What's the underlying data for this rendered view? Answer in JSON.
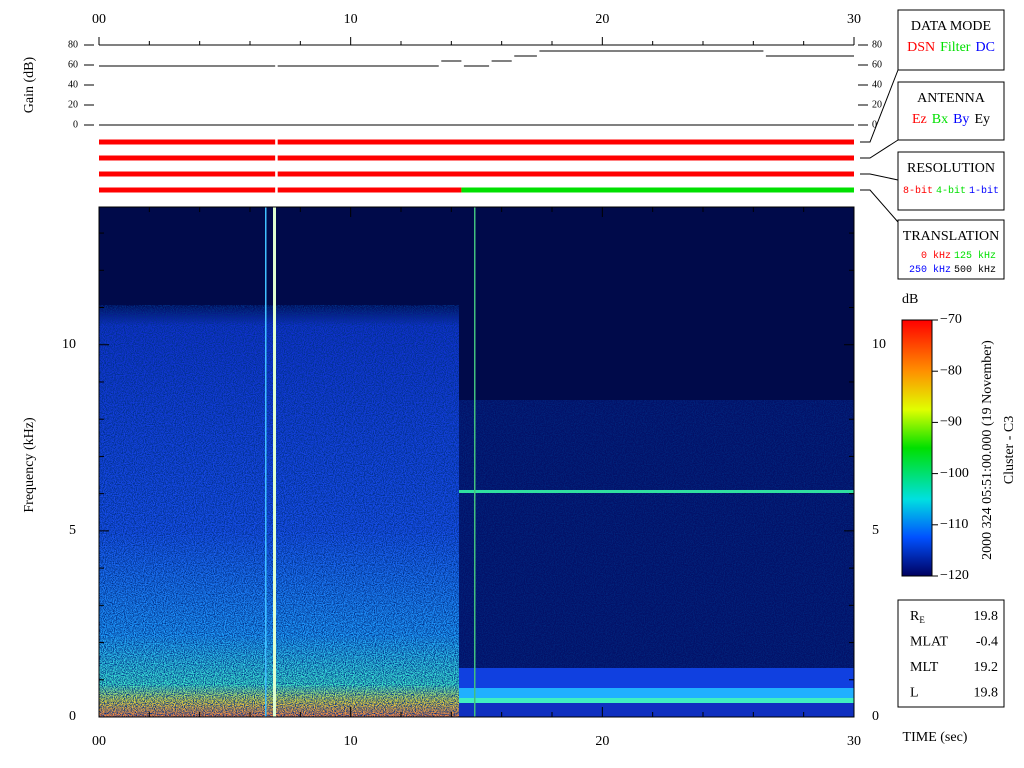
{
  "chart_data": [
    {
      "type": "line",
      "ylabel": "Gain (dB)",
      "xlim": [
        0,
        30
      ],
      "ylim": [
        0,
        80
      ],
      "xticks": [
        {
          "value": 0,
          "label": "00"
        },
        10,
        20,
        30
      ],
      "xminorticks": [
        2,
        4,
        6,
        8,
        12,
        14,
        16,
        18,
        22,
        24,
        26,
        28
      ],
      "yticks": [
        0,
        20,
        40,
        60,
        80
      ],
      "series": [
        {
          "color": "#000000",
          "x": [
            0,
            7.0,
            7.0,
            7.1,
            13.5,
            13.5,
            13.6,
            14.4,
            14.4,
            14.5,
            15.5,
            15.5,
            15.6,
            16.4,
            16.4,
            16.5,
            17.4,
            17.4,
            17.5,
            26.4,
            26.4,
            26.5,
            30
          ],
          "values": [
            59,
            59,
            null,
            59,
            59,
            null,
            64,
            64,
            null,
            59,
            59,
            null,
            64,
            64,
            null,
            69,
            69,
            null,
            74,
            74,
            null,
            69,
            69
          ]
        }
      ]
    },
    {
      "type": "timeline",
      "xlim": [
        0,
        30
      ],
      "rows": [
        {
          "title": "DATA MODE",
          "lines": [
            [
              {
                "name": "DSN",
                "color": "#ff0000"
              },
              {
                "name": "Filter",
                "color": "#00e000"
              },
              {
                "name": "DC",
                "color": "#0000ff"
              }
            ]
          ],
          "segments": [
            {
              "start": 0,
              "end": 7.0,
              "color": "#ff0000"
            },
            {
              "start": 7.1,
              "end": 30,
              "color": "#ff0000"
            }
          ]
        },
        {
          "title": "ANTENNA",
          "lines": [
            [
              {
                "name": "Ez",
                "color": "#ff0000"
              },
              {
                "name": "Bx",
                "color": "#00e000"
              },
              {
                "name": "By",
                "color": "#0000ff"
              },
              {
                "name": "Ey",
                "color": "#000000"
              }
            ]
          ],
          "segments": [
            {
              "start": 0,
              "end": 7.0,
              "color": "#ff0000"
            },
            {
              "start": 7.1,
              "end": 30,
              "color": "#ff0000"
            }
          ]
        },
        {
          "title": "RESOLUTION",
          "lines": [
            [
              {
                "name": "8-bit",
                "color": "#ff0000"
              },
              {
                "name": "4-bit",
                "color": "#00e000"
              },
              {
                "name": "1-bit",
                "color": "#0000ff"
              }
            ]
          ],
          "segments": [
            {
              "start": 0,
              "end": 7.0,
              "color": "#ff0000"
            },
            {
              "start": 7.1,
              "end": 30,
              "color": "#ff0000"
            }
          ]
        },
        {
          "title": "TRANSLATION",
          "lines": [
            [
              {
                "name": "0 kHz",
                "color": "#ff0000"
              },
              {
                "name": "125 kHz",
                "color": "#00e000"
              }
            ],
            [
              {
                "name": "250 kHz",
                "color": "#0000ff"
              },
              {
                "name": "500 kHz",
                "color": "#000000"
              }
            ]
          ],
          "segments": [
            {
              "start": 0,
              "end": 7.0,
              "color": "#ff0000"
            },
            {
              "start": 7.1,
              "end": 14.4,
              "color": "#ff0000"
            },
            {
              "start": 14.4,
              "end": 30,
              "color": "#00e000"
            }
          ]
        }
      ]
    },
    {
      "type": "spectrogram",
      "ylabel": "Frequency (kHz)",
      "xlabel": "TIME (sec)",
      "xlim": [
        0,
        30
      ],
      "ylim": [
        0,
        13.7
      ],
      "yticks": [
        0,
        5,
        10
      ],
      "yminorticks": [
        1,
        2,
        3,
        4,
        6,
        7,
        8,
        9,
        11,
        12,
        13
      ],
      "colorbar": {
        "label": "dB",
        "clim": [
          -120,
          -70
        ],
        "ticks": [
          {
            "value": -70,
            "label": "−70"
          },
          {
            "value": -80,
            "label": "−80"
          },
          {
            "value": -90,
            "label": "−90"
          },
          {
            "value": -100,
            "label": "−100"
          },
          {
            "value": -110,
            "label": "−110"
          },
          {
            "value": -120,
            "label": "−120"
          }
        ]
      },
      "annotations": [
        "2000 324 05:51:00.000 (19 November)",
        "Cluster - C3"
      ],
      "info": [
        {
          "label": "R",
          "sub": "E",
          "value": "19.8"
        },
        {
          "label": "MLAT",
          "value": "-0.4"
        },
        {
          "label": "MLT",
          "value": "19.2"
        },
        {
          "label": "L",
          "value": "19.8"
        }
      ]
    }
  ]
}
